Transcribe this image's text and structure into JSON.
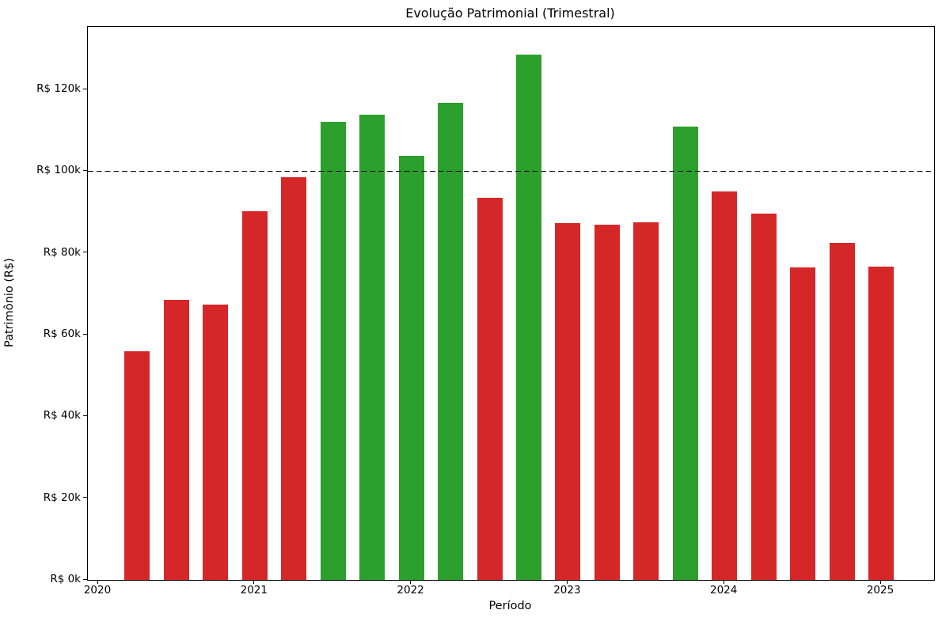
{
  "chart_data": {
    "type": "bar",
    "title": "Evolução Patrimonial (Trimestral)",
    "xlabel": "Período",
    "ylabel": "Patrimônio (R$)",
    "unit": "thousands of R$",
    "categories": [
      "2020-Q2",
      "2020-Q3",
      "2020-Q4",
      "2021-Q1",
      "2021-Q2",
      "2021-Q3",
      "2021-Q4",
      "2022-Q1",
      "2022-Q2",
      "2022-Q3",
      "2022-Q4",
      "2023-Q1",
      "2023-Q2",
      "2023-Q3",
      "2023-Q4",
      "2024-Q1",
      "2024-Q2",
      "2024-Q3",
      "2024-Q4",
      "2025-Q1"
    ],
    "values": [
      56.0,
      68.5,
      67.4,
      90.2,
      98.6,
      112.1,
      113.8,
      103.8,
      116.7,
      93.5,
      128.6,
      87.3,
      86.9,
      87.5,
      110.9,
      95.0,
      89.6,
      76.4,
      82.5,
      76.7
    ],
    "bar_colors": [
      "red",
      "red",
      "red",
      "red",
      "red",
      "green",
      "green",
      "green",
      "green",
      "red",
      "green",
      "red",
      "red",
      "red",
      "green",
      "red",
      "red",
      "red",
      "red",
      "red"
    ],
    "color_map": {
      "green": "#2ca02c",
      "red": "#d62728"
    },
    "color_rule": "green if value >= 100 (R$ 100k) else red",
    "reference_line": {
      "value": 100.0,
      "style": "dashed",
      "color": "#000000"
    },
    "ylim": [
      0,
      135.3
    ],
    "yticks": {
      "values": [
        0,
        20,
        40,
        60,
        80,
        100,
        120
      ],
      "labels": [
        "R$ 0k",
        "R$ 20k",
        "R$ 40k",
        "R$ 60k",
        "R$ 80k",
        "R$ 100k",
        "R$ 120k"
      ]
    },
    "xticks": {
      "labels": [
        "2020",
        "2021",
        "2022",
        "2023",
        "2024",
        "2025"
      ]
    },
    "grid": false,
    "legend": false
  }
}
